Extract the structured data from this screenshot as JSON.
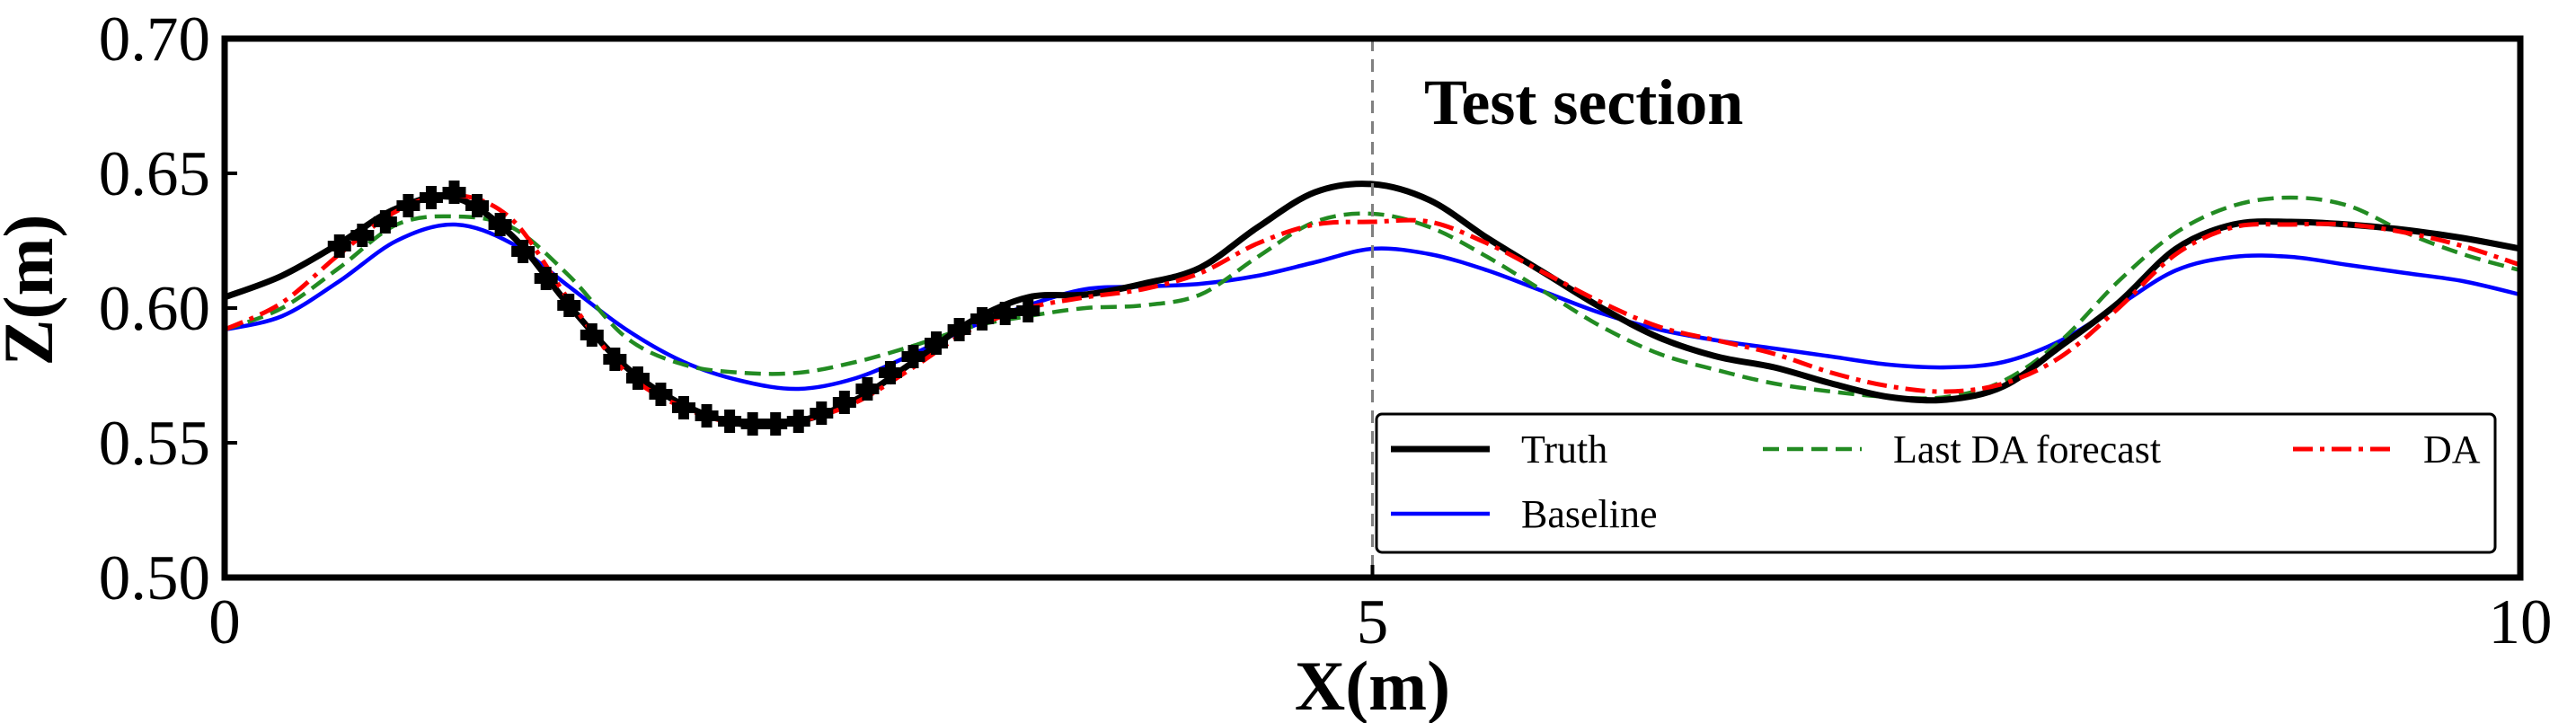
{
  "chart_data": {
    "type": "line",
    "title": "",
    "xlabel": "X(m)",
    "ylabel": "Z(m)",
    "xlim": [
      0,
      10
    ],
    "ylim": [
      0.5,
      0.7
    ],
    "xticks": [
      0,
      5,
      10
    ],
    "xtick_labels": [
      "0",
      "5",
      "10"
    ],
    "yticks": [
      0.5,
      0.55,
      0.6,
      0.65,
      0.7
    ],
    "ytick_labels": [
      "0.50",
      "0.55",
      "0.60",
      "0.65",
      "0.70"
    ],
    "grid": false,
    "legend_position": "lower-right",
    "legend_columns": 3,
    "divider_x": 5,
    "annotation": "Test section",
    "series": [
      {
        "name": "Truth",
        "color": "#000000",
        "style": "solid",
        "x": [
          0,
          0.25,
          0.5,
          0.75,
          1.0,
          1.25,
          1.5,
          1.75,
          2.0,
          2.25,
          2.5,
          2.75,
          3.0,
          3.25,
          3.5,
          3.75,
          4.0,
          4.25,
          4.5,
          4.75,
          5.0,
          5.25,
          5.5,
          5.75,
          6.0,
          6.25,
          6.5,
          6.75,
          7.0,
          7.25,
          7.5,
          7.75,
          8.0,
          8.25,
          8.5,
          8.75,
          9.0,
          9.25,
          9.5,
          9.75,
          10.0
        ],
        "y": [
          0.604,
          0.612,
          0.624,
          0.637,
          0.641,
          0.627,
          0.601,
          0.578,
          0.564,
          0.557,
          0.558,
          0.566,
          0.58,
          0.595,
          0.604,
          0.605,
          0.609,
          0.615,
          0.63,
          0.643,
          0.646,
          0.64,
          0.626,
          0.613,
          0.6,
          0.589,
          0.582,
          0.578,
          0.572,
          0.567,
          0.566,
          0.571,
          0.586,
          0.602,
          0.622,
          0.631,
          0.632,
          0.631,
          0.629,
          0.626,
          0.622
        ]
      },
      {
        "name": "Baseline",
        "color": "#0000ff",
        "style": "solid",
        "x": [
          0,
          0.25,
          0.5,
          0.75,
          1.0,
          1.25,
          1.5,
          1.75,
          2.0,
          2.25,
          2.5,
          2.75,
          3.0,
          3.25,
          3.5,
          3.75,
          4.0,
          4.25,
          4.5,
          4.75,
          5.0,
          5.25,
          5.5,
          5.75,
          6.0,
          6.25,
          6.5,
          6.75,
          7.0,
          7.25,
          7.5,
          7.75,
          8.0,
          8.25,
          8.5,
          8.75,
          9.0,
          9.25,
          9.5,
          9.75,
          10.0
        ],
        "y": [
          0.592,
          0.597,
          0.61,
          0.625,
          0.631,
          0.624,
          0.608,
          0.592,
          0.58,
          0.573,
          0.57,
          0.574,
          0.583,
          0.593,
          0.601,
          0.607,
          0.608,
          0.609,
          0.612,
          0.617,
          0.622,
          0.62,
          0.614,
          0.606,
          0.598,
          0.592,
          0.588,
          0.585,
          0.582,
          0.579,
          0.578,
          0.58,
          0.588,
          0.601,
          0.614,
          0.619,
          0.619,
          0.616,
          0.613,
          0.61,
          0.605
        ]
      },
      {
        "name": "Last DA forecast",
        "color": "#228b22",
        "style": "dashed",
        "x": [
          0,
          0.25,
          0.5,
          0.75,
          1.0,
          1.25,
          1.5,
          1.75,
          2.0,
          2.25,
          2.5,
          2.75,
          3.0,
          3.25,
          3.5,
          3.75,
          4.0,
          4.25,
          4.5,
          4.75,
          5.0,
          5.25,
          5.5,
          5.75,
          6.0,
          6.25,
          6.5,
          6.75,
          7.0,
          7.25,
          7.5,
          7.75,
          8.0,
          8.25,
          8.5,
          8.75,
          9.0,
          9.25,
          9.5,
          9.75,
          10.0
        ],
        "y": [
          0.592,
          0.6,
          0.615,
          0.631,
          0.634,
          0.63,
          0.612,
          0.589,
          0.579,
          0.576,
          0.576,
          0.58,
          0.586,
          0.593,
          0.597,
          0.6,
          0.601,
          0.605,
          0.619,
          0.632,
          0.635,
          0.63,
          0.619,
          0.606,
          0.593,
          0.583,
          0.577,
          0.572,
          0.569,
          0.567,
          0.567,
          0.573,
          0.588,
          0.61,
          0.628,
          0.638,
          0.641,
          0.638,
          0.628,
          0.62,
          0.614
        ]
      },
      {
        "name": "DA",
        "color": "#ff0000",
        "style": "dashdot",
        "x": [
          0,
          0.25,
          0.5,
          0.75,
          1.0,
          1.25,
          1.5,
          1.75,
          2.0,
          2.25,
          2.5,
          2.75,
          3.0,
          3.25,
          3.5,
          3.75,
          4.0,
          4.25,
          4.5,
          4.75,
          5.0,
          5.25,
          5.5,
          5.75,
          6.0,
          6.25,
          6.5,
          6.75,
          7.0,
          7.25,
          7.5,
          7.75,
          8.0,
          8.25,
          8.5,
          8.75,
          9.0,
          9.25,
          9.5,
          9.75,
          10.0
        ],
        "y": [
          0.592,
          0.602,
          0.62,
          0.636,
          0.642,
          0.633,
          0.603,
          0.576,
          0.563,
          0.557,
          0.558,
          0.565,
          0.578,
          0.592,
          0.6,
          0.604,
          0.607,
          0.613,
          0.624,
          0.631,
          0.632,
          0.632,
          0.624,
          0.613,
          0.602,
          0.593,
          0.588,
          0.583,
          0.576,
          0.571,
          0.569,
          0.572,
          0.582,
          0.6,
          0.62,
          0.63,
          0.631,
          0.631,
          0.628,
          0.623,
          0.616
        ]
      }
    ],
    "observations": {
      "marker": "plus",
      "color": "#000000",
      "x": [
        0.5,
        0.6,
        0.7,
        0.8,
        0.9,
        1.0,
        1.1,
        1.2,
        1.3,
        1.4,
        1.5,
        1.6,
        1.7,
        1.8,
        1.9,
        2.0,
        2.1,
        2.2,
        2.3,
        2.4,
        2.5,
        2.6,
        2.7,
        2.8,
        2.9,
        3.0,
        3.1,
        3.2,
        3.3,
        3.4,
        3.5
      ],
      "y": [
        0.623,
        0.627,
        0.632,
        0.638,
        0.641,
        0.643,
        0.638,
        0.631,
        0.621,
        0.611,
        0.601,
        0.59,
        0.581,
        0.574,
        0.568,
        0.563,
        0.56,
        0.558,
        0.557,
        0.557,
        0.558,
        0.561,
        0.565,
        0.57,
        0.576,
        0.582,
        0.587,
        0.592,
        0.596,
        0.598,
        0.599
      ]
    }
  }
}
